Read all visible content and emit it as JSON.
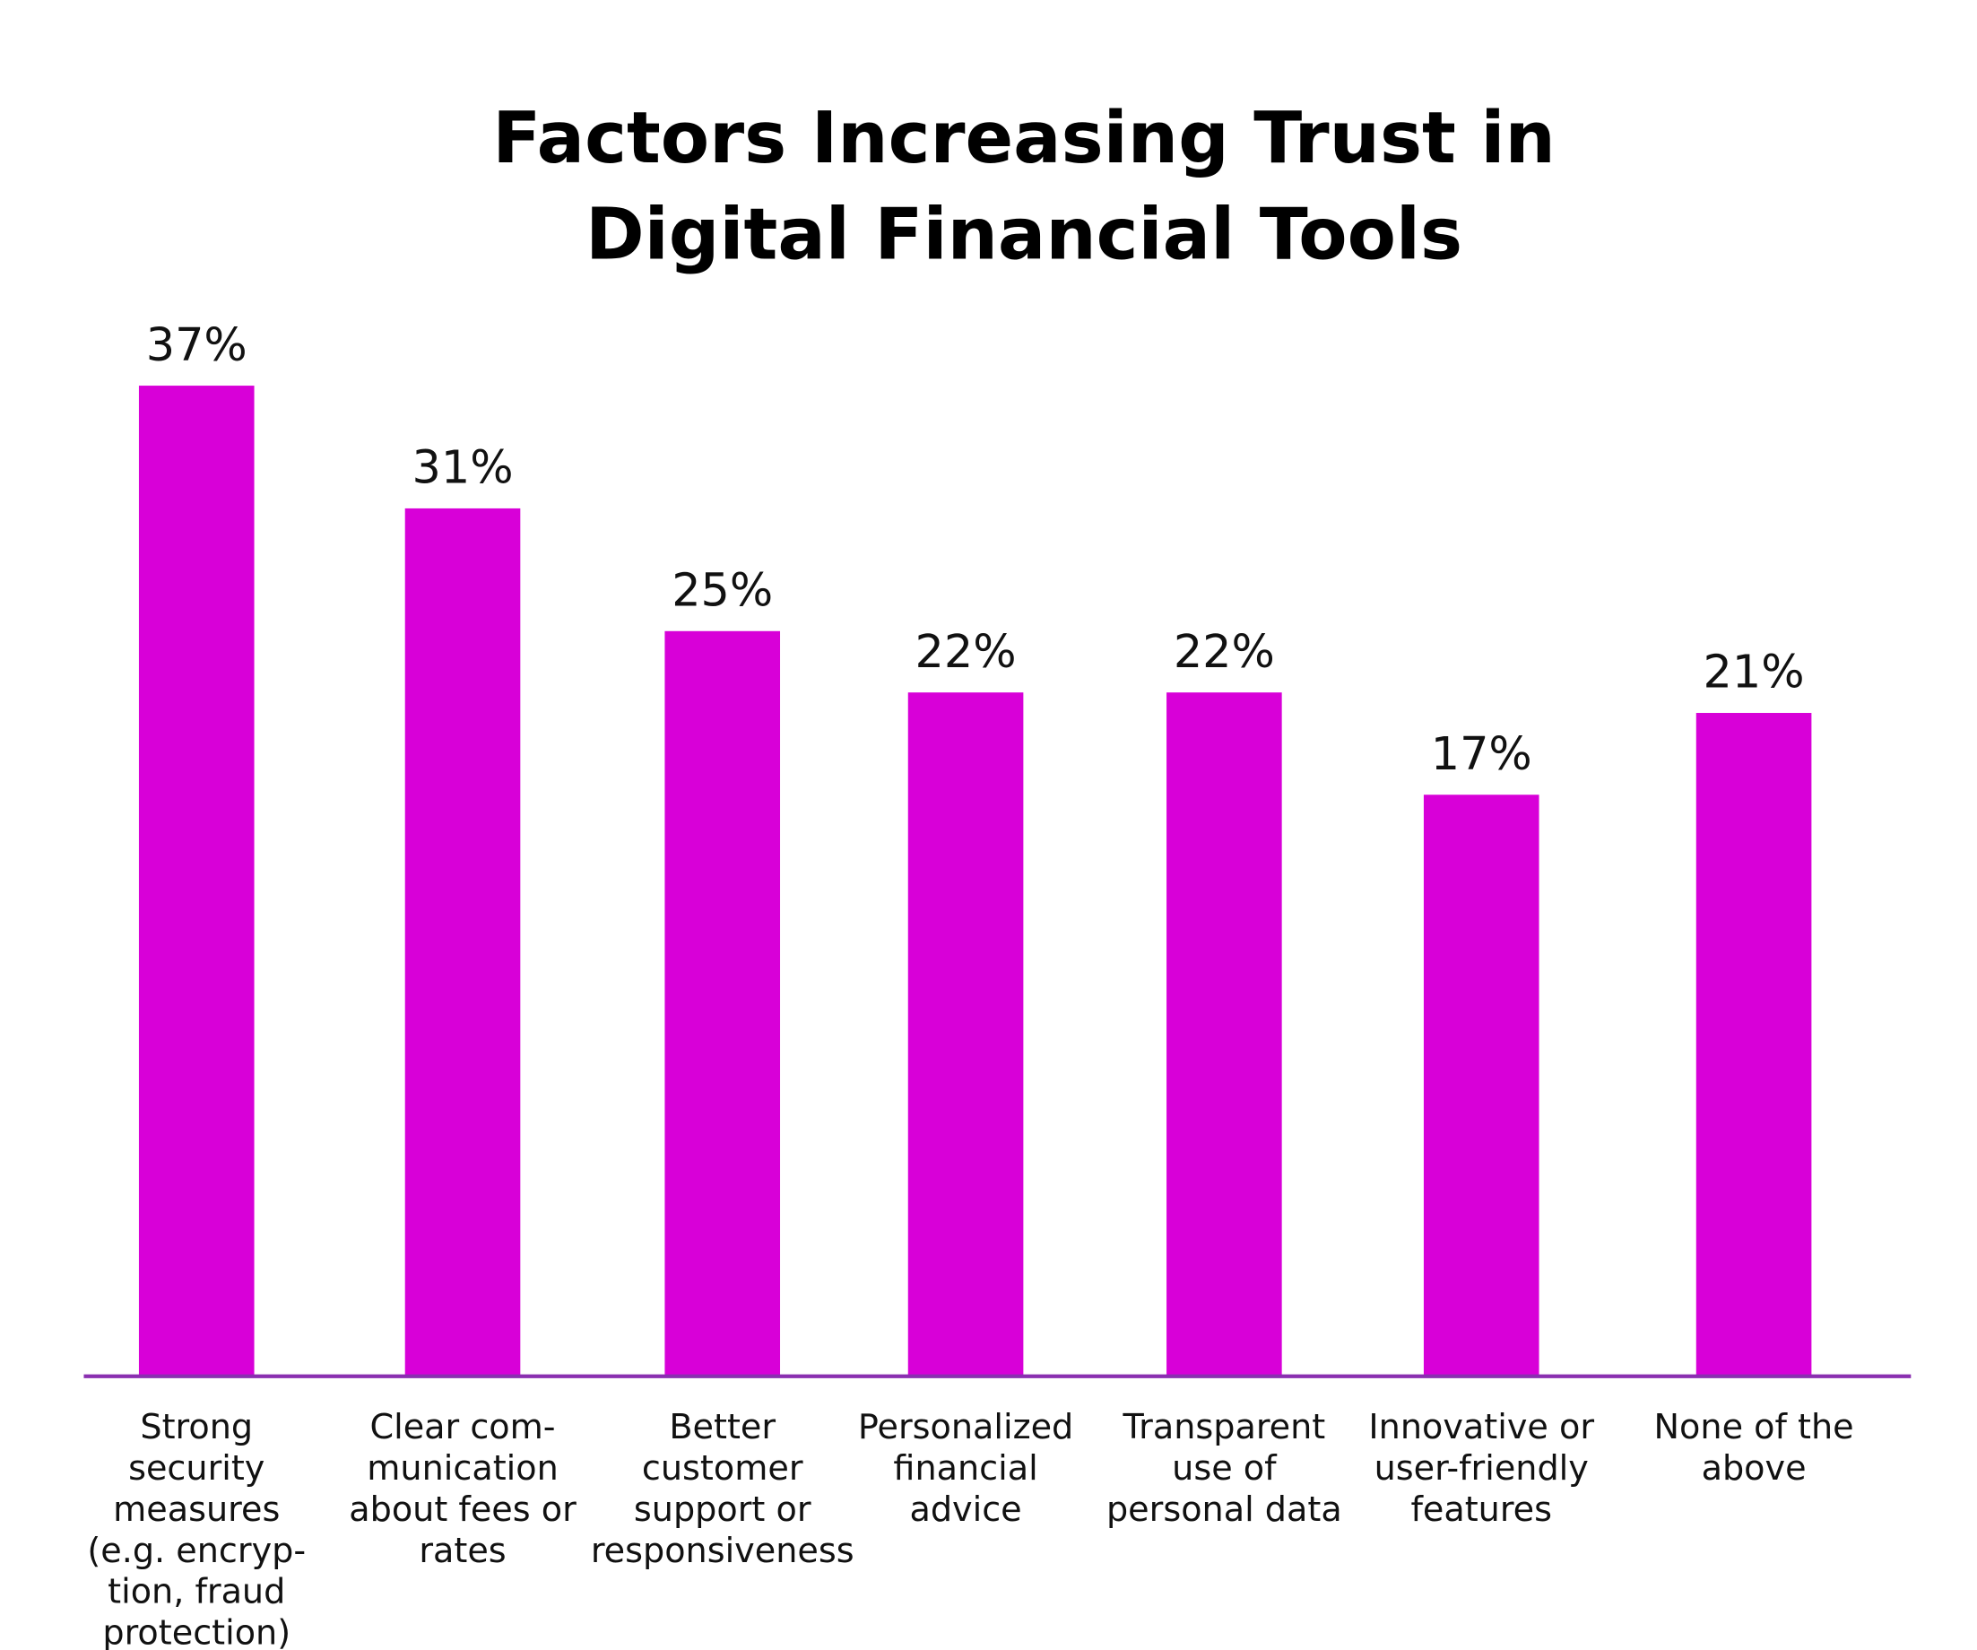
{
  "chart_data": {
    "type": "bar",
    "title_lines": [
      "Factors Increasing Trust in",
      "Digital Financial Tools"
    ],
    "categories": [
      [
        "Strong",
        "security",
        "measures",
        "(e.g. encryp-",
        "tion, fraud",
        "protection)"
      ],
      [
        "Clear com-",
        "munication",
        "about fees or",
        "rates"
      ],
      [
        "Better",
        "customer",
        "support or",
        "responsiveness"
      ],
      [
        "Personalized",
        "financial",
        "advice"
      ],
      [
        "Transparent",
        "use of",
        "personal data"
      ],
      [
        "Innovative or",
        "user-friendly",
        "features"
      ],
      [
        "None of the",
        "above"
      ]
    ],
    "values": [
      37,
      31,
      25,
      22,
      22,
      17,
      21
    ],
    "data_labels": [
      "37%",
      "31%",
      "25%",
      "22%",
      "22%",
      "17%",
      "21%"
    ],
    "xlabel": "",
    "ylabel": "",
    "grid": false,
    "colors": {
      "bar": "#d800d8",
      "axis": "#8a2fb0",
      "text": "#000000"
    }
  }
}
